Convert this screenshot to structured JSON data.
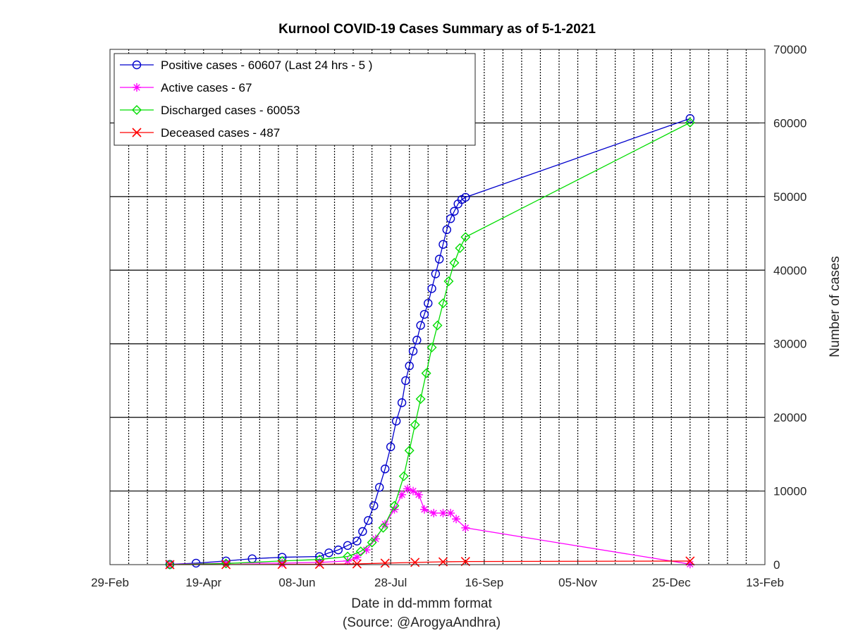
{
  "chart_data": {
    "type": "line",
    "title": "Kurnool COVID-19 Cases Summary as of 5-1-2021",
    "xlabel": "Date in dd-mmm format",
    "source_note": "(Source: @ArogyaAndhra)",
    "ylabel": "Number of cases",
    "x_axis": {
      "type": "date",
      "range": [
        "2020-02-29",
        "2021-02-13"
      ],
      "tick_labels": [
        "29-Feb",
        "19-Apr",
        "08-Jun",
        "28-Jul",
        "16-Sep",
        "05-Nov",
        "25-Dec",
        "13-Feb"
      ]
    },
    "y_axis": {
      "position": "right",
      "range": [
        0,
        70000
      ],
      "tick_labels": [
        "0",
        "10000",
        "20000",
        "30000",
        "40000",
        "50000",
        "60000",
        "70000"
      ]
    },
    "grid": "on",
    "legend_placement": "top-left",
    "series": [
      {
        "name": "Positive cases - 60607 (Last 24 hrs - 5 )",
        "color": "#0000cc",
        "marker": "circle",
        "points": [
          [
            "2020-04-01",
            30
          ],
          [
            "2020-04-15",
            200
          ],
          [
            "2020-05-01",
            500
          ],
          [
            "2020-05-15",
            800
          ],
          [
            "2020-05-31",
            1000
          ],
          [
            "2020-06-20",
            1100
          ],
          [
            "2020-06-25",
            1600
          ],
          [
            "2020-06-30",
            2000
          ],
          [
            "2020-07-05",
            2600
          ],
          [
            "2020-07-10",
            3200
          ],
          [
            "2020-07-13",
            4500
          ],
          [
            "2020-07-16",
            6000
          ],
          [
            "2020-07-19",
            8000
          ],
          [
            "2020-07-22",
            10500
          ],
          [
            "2020-07-25",
            13000
          ],
          [
            "2020-07-28",
            16000
          ],
          [
            "2020-07-31",
            19500
          ],
          [
            "2020-08-03",
            22000
          ],
          [
            "2020-08-05",
            25000
          ],
          [
            "2020-08-07",
            27000
          ],
          [
            "2020-08-09",
            29000
          ],
          [
            "2020-08-11",
            30500
          ],
          [
            "2020-08-13",
            32500
          ],
          [
            "2020-08-15",
            34000
          ],
          [
            "2020-08-17",
            35500
          ],
          [
            "2020-08-19",
            37500
          ],
          [
            "2020-08-21",
            39500
          ],
          [
            "2020-08-23",
            41500
          ],
          [
            "2020-08-25",
            43500
          ],
          [
            "2020-08-27",
            45500
          ],
          [
            "2020-08-29",
            47000
          ],
          [
            "2020-08-31",
            48000
          ],
          [
            "2020-09-02",
            49000
          ],
          [
            "2020-09-04",
            49600
          ],
          [
            "2020-09-06",
            49900
          ],
          [
            "2021-01-04",
            60607
          ]
        ]
      },
      {
        "name": "Active cases - 67",
        "color": "#ff00ff",
        "marker": "star",
        "points": [
          [
            "2020-04-01",
            30
          ],
          [
            "2020-05-01",
            200
          ],
          [
            "2020-05-31",
            200
          ],
          [
            "2020-06-20",
            300
          ],
          [
            "2020-07-05",
            500
          ],
          [
            "2020-07-10",
            1000
          ],
          [
            "2020-07-15",
            2000
          ],
          [
            "2020-07-20",
            3500
          ],
          [
            "2020-07-25",
            5500
          ],
          [
            "2020-07-30",
            7500
          ],
          [
            "2020-08-03",
            9500
          ],
          [
            "2020-08-06",
            10300
          ],
          [
            "2020-08-09",
            10000
          ],
          [
            "2020-08-12",
            9500
          ],
          [
            "2020-08-15",
            7500
          ],
          [
            "2020-08-20",
            7000
          ],
          [
            "2020-08-25",
            7000
          ],
          [
            "2020-08-29",
            7000
          ],
          [
            "2020-09-01",
            6200
          ],
          [
            "2020-09-06",
            5000
          ],
          [
            "2021-01-04",
            67
          ]
        ]
      },
      {
        "name": "Discharged cases - 60053",
        "color": "#00dd00",
        "marker": "diamond",
        "points": [
          [
            "2020-04-01",
            0
          ],
          [
            "2020-05-01",
            150
          ],
          [
            "2020-05-31",
            500
          ],
          [
            "2020-06-20",
            700
          ],
          [
            "2020-07-05",
            1100
          ],
          [
            "2020-07-12",
            1800
          ],
          [
            "2020-07-18",
            3000
          ],
          [
            "2020-07-24",
            5000
          ],
          [
            "2020-07-30",
            8000
          ],
          [
            "2020-08-04",
            12000
          ],
          [
            "2020-08-07",
            15500
          ],
          [
            "2020-08-10",
            19000
          ],
          [
            "2020-08-13",
            22500
          ],
          [
            "2020-08-16",
            26000
          ],
          [
            "2020-08-19",
            29500
          ],
          [
            "2020-08-22",
            32500
          ],
          [
            "2020-08-25",
            35500
          ],
          [
            "2020-08-28",
            38500
          ],
          [
            "2020-08-31",
            41000
          ],
          [
            "2020-09-03",
            43000
          ],
          [
            "2020-09-06",
            44500
          ],
          [
            "2021-01-04",
            60053
          ]
        ]
      },
      {
        "name": "Deceased cases - 487",
        "color": "#ff0000",
        "marker": "x",
        "points": [
          [
            "2020-04-01",
            0
          ],
          [
            "2020-05-01",
            10
          ],
          [
            "2020-05-31",
            30
          ],
          [
            "2020-06-20",
            40
          ],
          [
            "2020-07-10",
            100
          ],
          [
            "2020-07-25",
            200
          ],
          [
            "2020-08-10",
            300
          ],
          [
            "2020-08-25",
            380
          ],
          [
            "2020-09-06",
            420
          ],
          [
            "2021-01-04",
            487
          ]
        ]
      }
    ]
  }
}
